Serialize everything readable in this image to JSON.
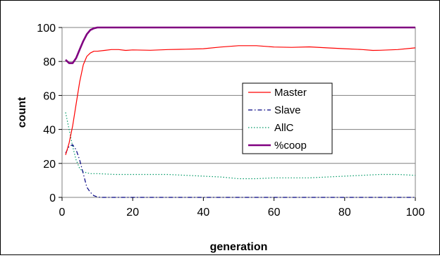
{
  "chart_data": {
    "type": "line",
    "xlabel": "generation",
    "ylabel": "count",
    "xlim": [
      0,
      100
    ],
    "ylim": [
      0,
      100
    ],
    "xticks": [
      0,
      20,
      40,
      60,
      80,
      100
    ],
    "yticks": [
      0,
      20,
      40,
      60,
      80,
      100
    ],
    "grid": "horizontal",
    "legend_position": "center-right",
    "series": [
      {
        "name": "Master",
        "color": "#ff0000",
        "style": "solid",
        "x": [
          1,
          2,
          3,
          4,
          5,
          6,
          7,
          8,
          9,
          10,
          12,
          14,
          16,
          18,
          20,
          25,
          30,
          35,
          40,
          45,
          50,
          55,
          60,
          65,
          70,
          75,
          80,
          85,
          88,
          90,
          95,
          100
        ],
        "y": [
          25,
          32,
          42,
          55,
          68,
          78,
          83,
          85,
          86,
          86,
          86.5,
          87,
          87,
          86.5,
          86.8,
          86.6,
          87,
          87.2,
          87.5,
          88.5,
          89.3,
          89.3,
          88.5,
          88.3,
          88.6,
          88,
          87.5,
          87,
          86.5,
          86.6,
          87,
          88
        ]
      },
      {
        "name": "Slave",
        "color": "#000080",
        "style": "dashdot",
        "x": [
          1,
          2,
          3,
          4,
          5,
          6,
          7,
          8,
          9,
          10,
          11,
          12,
          15,
          20,
          30,
          40,
          50,
          60,
          70,
          80,
          90,
          100
        ],
        "y": [
          26,
          30,
          31,
          28,
          22,
          14,
          6,
          3,
          1,
          0.3,
          0,
          0,
          0,
          0,
          0,
          0,
          0,
          0,
          0,
          0,
          0,
          0
        ]
      },
      {
        "name": "AllC",
        "color": "#009966",
        "style": "dotted",
        "x": [
          1,
          2,
          3,
          4,
          5,
          6,
          7,
          8,
          9,
          10,
          15,
          20,
          25,
          30,
          35,
          40,
          45,
          50,
          55,
          60,
          65,
          70,
          75,
          80,
          85,
          90,
          95,
          100
        ],
        "y": [
          50,
          40,
          30,
          22,
          17,
          15,
          14.5,
          14,
          14,
          14,
          13.5,
          13.5,
          13.5,
          13.5,
          13,
          12.5,
          12,
          11,
          11,
          11.5,
          11.5,
          11.5,
          12,
          12.5,
          13,
          13.5,
          13.5,
          13
        ]
      },
      {
        "name": "%coop",
        "color": "#800080",
        "style": "thick",
        "x": [
          1,
          2,
          3,
          4,
          5,
          6,
          7,
          8,
          9,
          10,
          11,
          12,
          14,
          20,
          30,
          40,
          50,
          60,
          70,
          80,
          90,
          100
        ],
        "y": [
          81,
          79,
          79,
          82,
          87,
          92,
          96,
          98.5,
          99.5,
          100,
          100,
          100,
          100,
          100,
          100,
          100,
          100,
          100,
          100,
          100,
          100,
          100
        ]
      }
    ]
  }
}
